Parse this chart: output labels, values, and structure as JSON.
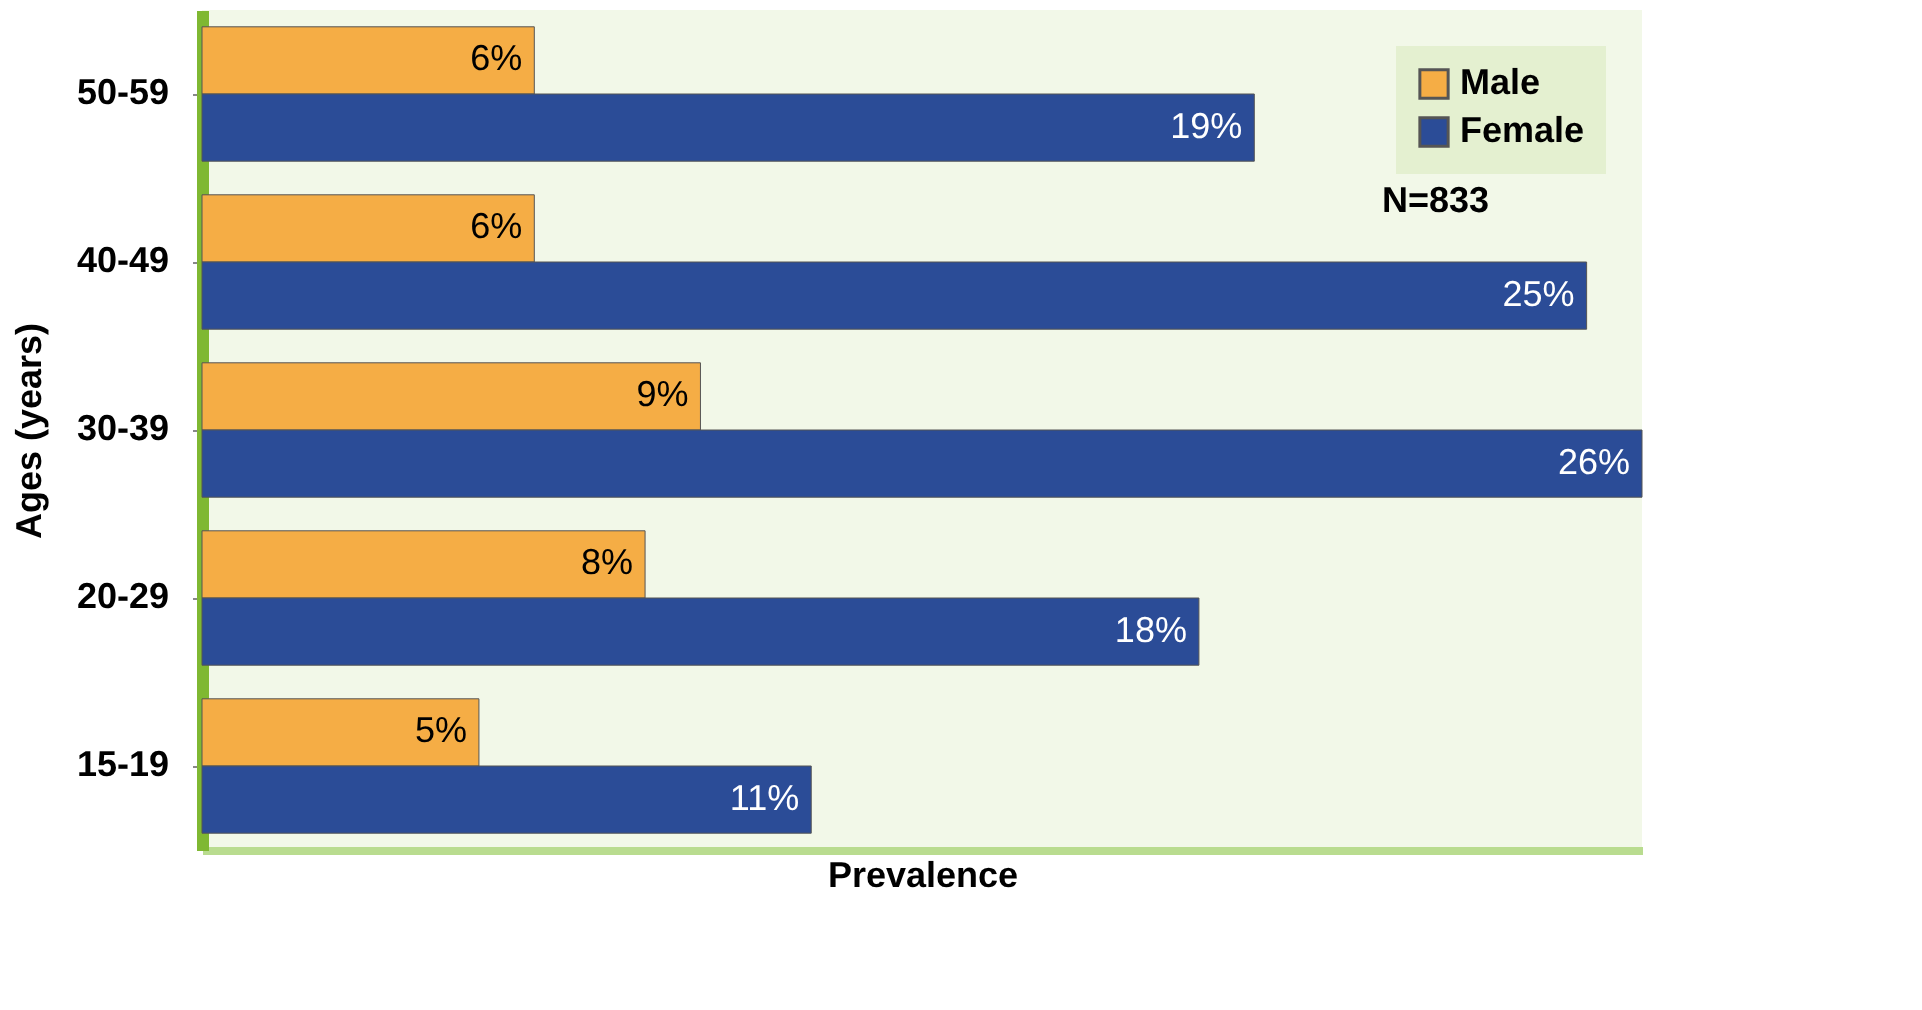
{
  "chart_data": {
    "type": "bar",
    "orientation": "horizontal",
    "xlabel": "Prevalence",
    "ylabel": "Ages (years)",
    "categories": [
      "50-59",
      "40-49",
      "30-39",
      "20-29",
      "15-19"
    ],
    "series": [
      {
        "name": "Male",
        "color": "#f5ad45",
        "values": [
          6,
          6,
          9,
          8,
          5
        ],
        "value_labels": [
          "6%",
          "6%",
          "9%",
          "8%",
          "5%"
        ]
      },
      {
        "name": "Female",
        "color": "#2b4c97",
        "values": [
          19,
          25,
          26,
          18,
          11
        ],
        "value_labels": [
          "19%",
          "25%",
          "26%",
          "18%",
          "11%"
        ]
      }
    ],
    "legend": "top right",
    "annotations": [
      "N=833"
    ],
    "grid": false
  }
}
